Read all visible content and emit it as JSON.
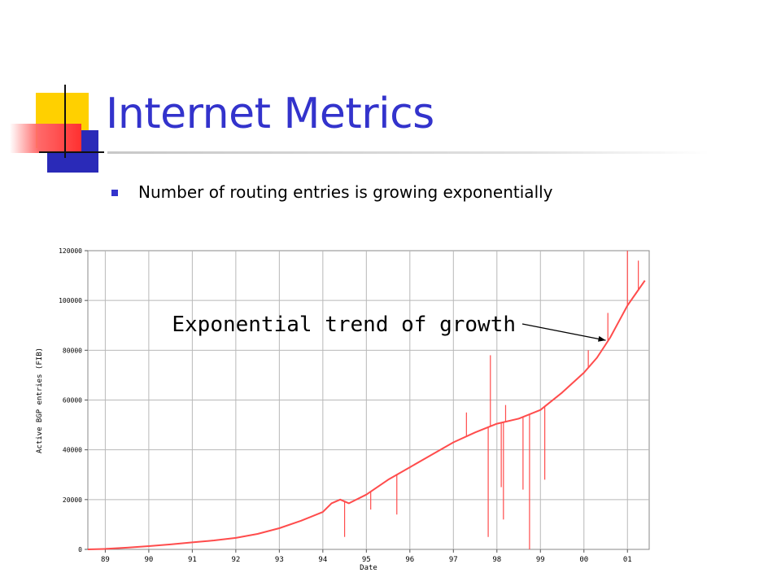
{
  "slide": {
    "title": "Internet Metrics",
    "bullet": "Number of routing entries is growing exponentially",
    "title_color": "#3333cc"
  },
  "chart_data": {
    "type": "line",
    "xlabel": "Date",
    "ylabel": "Active BGP entries (FIB)",
    "x_tick_labels": [
      "89",
      "90",
      "91",
      "92",
      "93",
      "94",
      "95",
      "96",
      "97",
      "98",
      "99",
      "00",
      "01"
    ],
    "y_tick_labels": [
      "0",
      "20000",
      "40000",
      "60000",
      "80000",
      "100000",
      "120000"
    ],
    "xlim": [
      1988.6,
      2001.5
    ],
    "ylim": [
      0,
      120000
    ],
    "grid": true,
    "series_color": "#ff4c4c",
    "series": [
      {
        "x": [
          1988.6,
          1989.0,
          1989.5,
          1990.0,
          1990.5,
          1991.0,
          1991.5,
          1992.0,
          1992.5,
          1993.0,
          1993.5,
          1994.0,
          1994.2,
          1994.4,
          1994.6,
          1995.0,
          1995.5,
          1996.0,
          1996.5,
          1997.0,
          1997.5,
          1998.0,
          1998.5,
          1999.0,
          1999.5,
          2000.0,
          2000.3,
          2000.6,
          2001.0,
          2001.2,
          2001.4
        ],
        "y": [
          0,
          200,
          700,
          1300,
          2000,
          2800,
          3600,
          4600,
          6200,
          8500,
          11500,
          15000,
          18500,
          20000,
          18500,
          22000,
          28000,
          33000,
          38000,
          43000,
          47000,
          50500,
          52500,
          56000,
          63000,
          71000,
          77000,
          85000,
          98000,
          103000,
          108000
        ]
      }
    ],
    "spikes": [
      {
        "x": 1994.5,
        "y": 5000
      },
      {
        "x": 1995.1,
        "y": 16000
      },
      {
        "x": 1995.7,
        "y": 14000
      },
      {
        "x": 1997.3,
        "y": 55000
      },
      {
        "x": 1997.8,
        "y": 5000
      },
      {
        "x": 1997.85,
        "y": 78000
      },
      {
        "x": 1998.1,
        "y": 25000
      },
      {
        "x": 1998.15,
        "y": 12000
      },
      {
        "x": 1998.2,
        "y": 58000
      },
      {
        "x": 1998.6,
        "y": 24000
      },
      {
        "x": 1998.75,
        "y": 0
      },
      {
        "x": 1999.1,
        "y": 28000
      },
      {
        "x": 2000.1,
        "y": 80000
      },
      {
        "x": 2000.55,
        "y": 95000
      },
      {
        "x": 2001.0,
        "y": 120000
      },
      {
        "x": 2001.25,
        "y": 116000
      }
    ],
    "annotation": {
      "text": "Exponential trend of growth",
      "x": 2000.5,
      "y": 84000
    }
  }
}
